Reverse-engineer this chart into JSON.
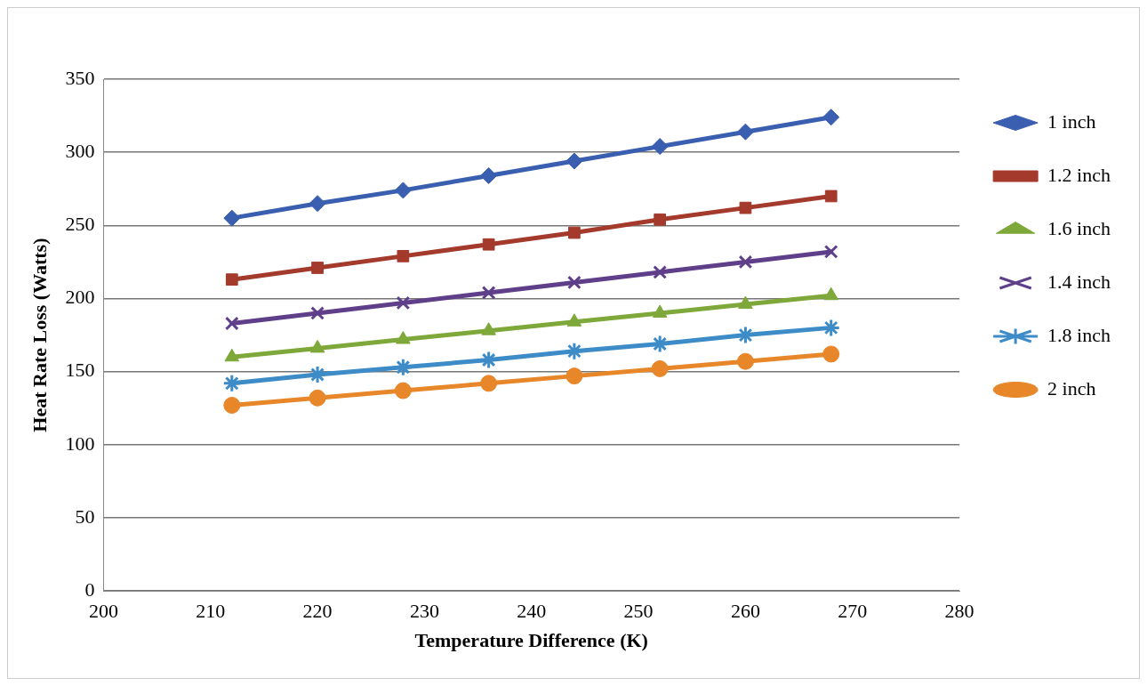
{
  "chart_data": {
    "type": "line",
    "xlabel": "Temperature Difference (K)",
    "ylabel": "Heat Rate Loss (Watts)",
    "x": [
      212,
      220,
      228,
      236,
      244,
      252,
      260,
      268
    ],
    "xlim": [
      200,
      280
    ],
    "xticks": [
      200,
      210,
      220,
      230,
      240,
      250,
      260,
      270,
      280
    ],
    "ylim": [
      0,
      350
    ],
    "yticks": [
      0,
      50,
      100,
      150,
      200,
      250,
      300,
      350
    ],
    "grid": "y",
    "legend": "right",
    "line_style": "solid",
    "series": [
      {
        "name": "1 inch",
        "color": "#3a5fb0",
        "marker": "diamond",
        "values": [
          255,
          265,
          274,
          284,
          294,
          304,
          314,
          324
        ]
      },
      {
        "name": "1.2 inch",
        "color": "#a33a2c",
        "marker": "square",
        "values": [
          213,
          221,
          229,
          237,
          245,
          254,
          262,
          270
        ]
      },
      {
        "name": "1.6 inch",
        "color": "#7ea83a",
        "marker": "triangle",
        "values": [
          160,
          166,
          172,
          178,
          184,
          190,
          196,
          202
        ]
      },
      {
        "name": "1.4 inch",
        "color": "#5f3f8a",
        "marker": "cross",
        "values": [
          183,
          190,
          197,
          204,
          211,
          218,
          225,
          232
        ]
      },
      {
        "name": "1.8 inch",
        "color": "#3d8cc8",
        "marker": "cross",
        "values": [
          142,
          148,
          153,
          158,
          164,
          169,
          175,
          180
        ]
      },
      {
        "name": "2 inch",
        "color": "#e8862a",
        "marker": "circle",
        "values": [
          127,
          132,
          137,
          142,
          147,
          152,
          157,
          162
        ]
      }
    ]
  }
}
